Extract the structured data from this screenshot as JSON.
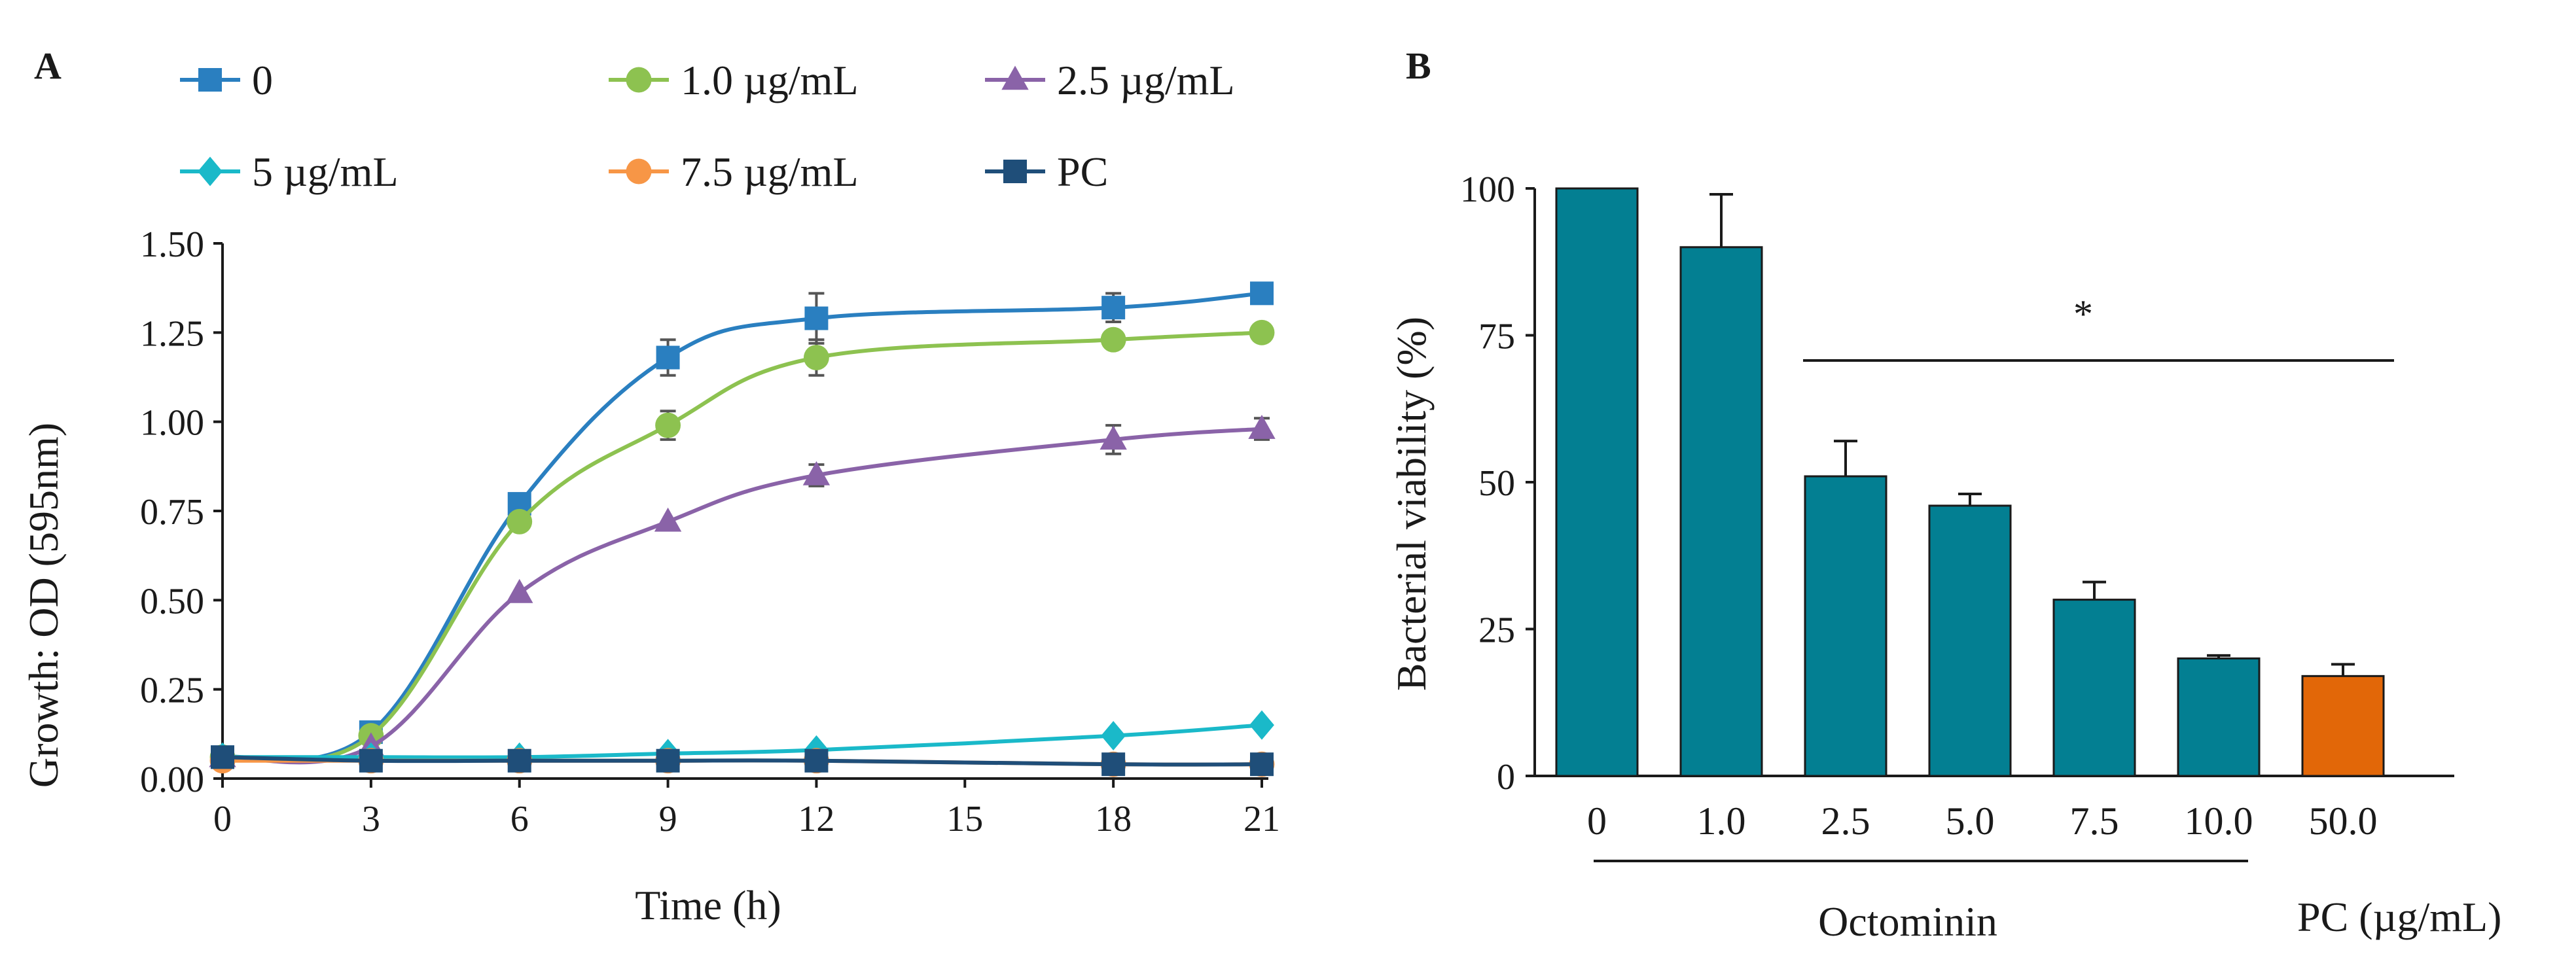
{
  "panels": {
    "a_label": "A",
    "b_label": "B"
  },
  "colors": {
    "series_0": "#2a7fc0",
    "series_1": "#8dc250",
    "series_2_5": "#8a63a8",
    "series_5": "#1ab9c9",
    "series_7_5": "#f79646",
    "series_pc": "#1f4e79",
    "bar_teal": "#037f92",
    "bar_pc": "#e26708",
    "axis": "#1a1a1a"
  },
  "chart_data": [
    {
      "type": "line",
      "panel": "A",
      "title": "",
      "xlabel": "Time (h)",
      "ylabel": "Growth: OD (595nm)",
      "x": [
        0,
        3,
        6,
        9,
        12,
        18,
        21
      ],
      "xticks": [
        "0",
        "3",
        "6",
        "9",
        "12",
        "15",
        "18",
        "21"
      ],
      "xtick_values": [
        0,
        3,
        6,
        9,
        12,
        15,
        18,
        21
      ],
      "yticks": [
        "0.00",
        "0.25",
        "0.50",
        "0.75",
        "1.00",
        "1.25",
        "1.50"
      ],
      "ytick_values": [
        0,
        0.25,
        0.5,
        0.75,
        1.0,
        1.25,
        1.5
      ],
      "xlim": [
        0,
        21
      ],
      "ylim": [
        0,
        1.5
      ],
      "legend_position": "top",
      "series": [
        {
          "name": "0",
          "marker": "square",
          "color_key": "series_0",
          "values": [
            0.06,
            0.13,
            0.77,
            1.18,
            1.29,
            1.32,
            1.36
          ],
          "errors": [
            0.0,
            0.0,
            0.0,
            0.05,
            0.07,
            0.04,
            0.0
          ]
        },
        {
          "name": "1.0 µg/mL",
          "marker": "circle",
          "color_key": "series_1",
          "values": [
            0.06,
            0.12,
            0.72,
            0.99,
            1.18,
            1.23,
            1.25
          ],
          "errors": [
            0.0,
            0.0,
            0.0,
            0.04,
            0.05,
            0.0,
            0.0
          ]
        },
        {
          "name": "2.5 µg/mL",
          "marker": "triangle",
          "color_key": "series_2_5",
          "values": [
            0.06,
            0.09,
            0.52,
            0.72,
            0.85,
            0.95,
            0.98
          ],
          "errors": [
            0.0,
            0.0,
            0.0,
            0.0,
            0.03,
            0.04,
            0.03
          ]
        },
        {
          "name": "5 µg/mL",
          "marker": "diamond",
          "color_key": "series_5",
          "values": [
            0.06,
            0.06,
            0.06,
            0.07,
            0.08,
            0.12,
            0.15
          ],
          "errors": [
            0,
            0,
            0,
            0,
            0,
            0,
            0
          ]
        },
        {
          "name": "7.5 µg/mL",
          "marker": "circle",
          "color_key": "series_7_5",
          "values": [
            0.05,
            0.05,
            0.05,
            0.05,
            0.05,
            0.04,
            0.04
          ],
          "errors": [
            0,
            0,
            0,
            0,
            0,
            0,
            0
          ]
        },
        {
          "name": "PC",
          "marker": "square",
          "color_key": "series_pc",
          "values": [
            0.06,
            0.05,
            0.05,
            0.05,
            0.05,
            0.04,
            0.04
          ],
          "errors": [
            0,
            0,
            0,
            0,
            0,
            0,
            0
          ]
        }
      ]
    },
    {
      "type": "bar",
      "panel": "B",
      "title": "",
      "ylabel": "Bacterial viability (%)",
      "xlabel_group_1": "Octominin",
      "xlabel_group_2": "PC (µg/mL)",
      "significance": "*",
      "categories": [
        "0",
        "1.0",
        "2.5",
        "5.0",
        "7.5",
        "10.0",
        "50.0"
      ],
      "values": [
        100,
        90,
        51,
        46,
        30,
        20,
        17
      ],
      "errors": [
        0,
        9,
        6,
        2,
        3,
        0.5,
        2
      ],
      "bar_color_keys": [
        "bar_teal",
        "bar_teal",
        "bar_teal",
        "bar_teal",
        "bar_teal",
        "bar_teal",
        "bar_pc"
      ],
      "yticks": [
        "0",
        "25",
        "50",
        "75",
        "100"
      ],
      "ytick_values": [
        0,
        25,
        50,
        75,
        100
      ],
      "ylim": [
        0,
        100
      ]
    }
  ]
}
